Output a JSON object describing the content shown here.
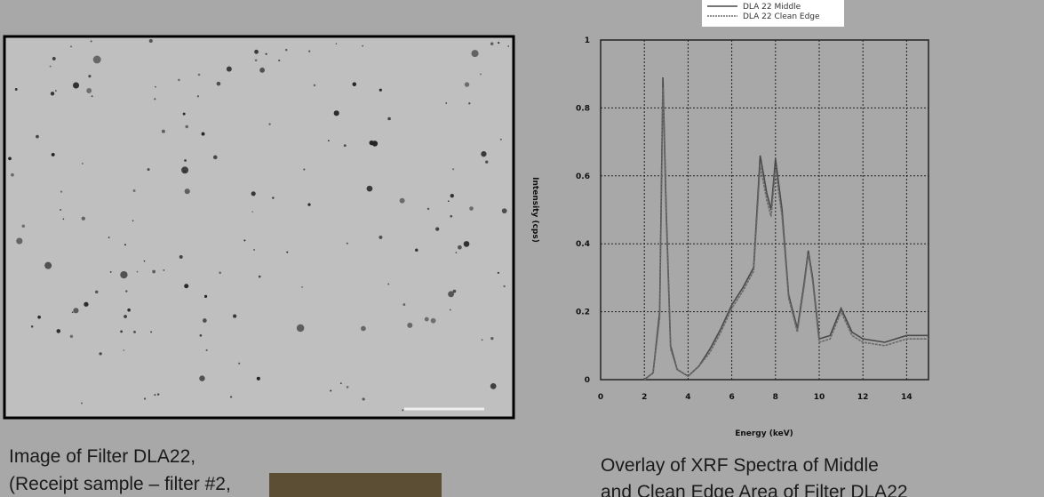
{
  "left_caption": {
    "line1": "Image of Filter DLA22,",
    "line2": "(Receipt sample – filter #2,"
  },
  "right_caption": {
    "line1": "Overlay of XRF Spectra of Middle",
    "line2": "and Clean Edge Area of Filter DLA22"
  },
  "chart_data": {
    "type": "line",
    "xlabel": "Energy (keV)",
    "ylabel": "Intensity (cps)",
    "x": [
      0,
      1,
      2,
      2.4,
      2.7,
      2.85,
      3.0,
      3.2,
      3.5,
      4,
      4.5,
      5,
      5.5,
      6,
      6.5,
      7,
      7.3,
      7.6,
      7.8,
      8.0,
      8.3,
      8.6,
      9.0,
      9.3,
      9.5,
      9.7,
      10,
      10.5,
      11,
      11.5,
      12,
      13,
      14,
      15
    ],
    "series": [
      {
        "name": "DLA 22 Middle",
        "color": "#4a4a4a",
        "values": [
          null,
          null,
          0,
          0.02,
          0.2,
          0.89,
          0.5,
          0.1,
          0.03,
          0.01,
          0.04,
          0.09,
          0.15,
          0.22,
          0.27,
          0.33,
          0.66,
          0.55,
          0.5,
          0.65,
          0.5,
          0.25,
          0.15,
          0.28,
          0.38,
          0.3,
          0.12,
          0.13,
          0.21,
          0.14,
          0.12,
          0.11,
          0.13,
          0.13
        ]
      },
      {
        "name": "DLA 22 Clean Edge",
        "color": "#6a6a6a",
        "values": [
          null,
          null,
          0,
          0.02,
          0.18,
          0.86,
          0.48,
          0.09,
          0.03,
          0.01,
          0.04,
          0.08,
          0.14,
          0.21,
          0.26,
          0.32,
          0.63,
          0.53,
          0.48,
          0.62,
          0.48,
          0.24,
          0.14,
          0.27,
          0.37,
          0.29,
          0.11,
          0.12,
          0.2,
          0.13,
          0.11,
          0.1,
          0.12,
          0.12
        ]
      }
    ],
    "xlim": [
      0,
      15
    ],
    "xticks": [
      0,
      2,
      4,
      6,
      8,
      10,
      12,
      14
    ],
    "ylim": [
      0,
      1
    ],
    "yticks": [
      0,
      0.2,
      0.4,
      0.6,
      0.8,
      1
    ],
    "grid": true
  }
}
